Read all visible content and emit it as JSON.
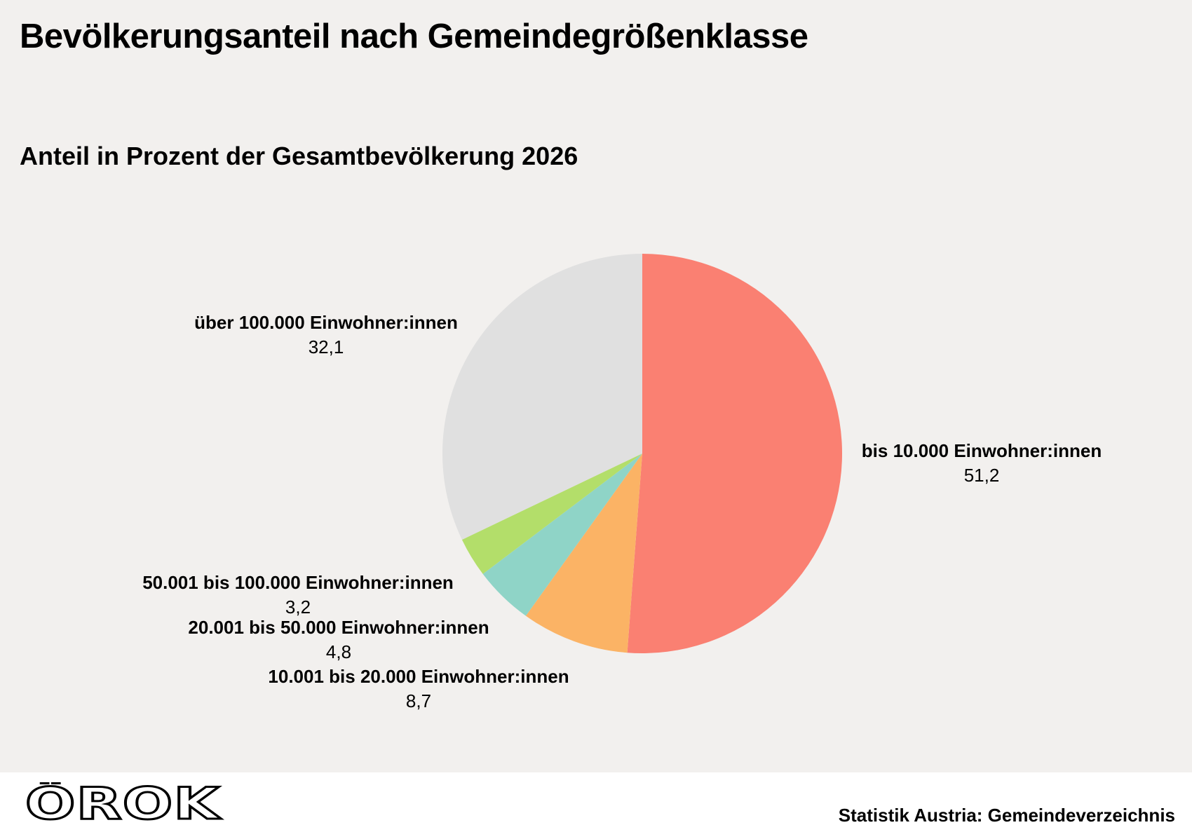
{
  "header": {
    "title": "Bevölkerungsanteil nach Gemeindegrößenklasse",
    "subtitle": "Anteil in Prozent der Gesamtbevölkerung 2026"
  },
  "footer": {
    "logo_text": "ÖROK",
    "source": "Statistik Austria: Gemeindeverzeichnis"
  },
  "chart_data": {
    "type": "pie",
    "title": "Bevölkerungsanteil nach Gemeindegrößenklasse",
    "subtitle": "Anteil in Prozent der Gesamtbevölkerung 2026",
    "start": "12 o'clock, clockwise",
    "slices": [
      {
        "label": "bis 10.000 Einwohner:innen",
        "value": 51.2,
        "value_text": "51,2",
        "color": "#fa8072"
      },
      {
        "label": "10.001 bis 20.000 Einwohner:innen",
        "value": 8.7,
        "value_text": "8,7",
        "color": "#fbb365"
      },
      {
        "label": "20.001 bis 50.000 Einwohner:innen",
        "value": 4.8,
        "value_text": "4,8",
        "color": "#8fd4c7"
      },
      {
        "label": "50.001 bis 100.000 Einwohner:innen",
        "value": 3.2,
        "value_text": "3,2",
        "color": "#b3de6a"
      },
      {
        "label": "über 100.000 Einwohner:innen",
        "value": 32.1,
        "value_text": "32,1",
        "color": "#e0e0e0"
      }
    ]
  }
}
